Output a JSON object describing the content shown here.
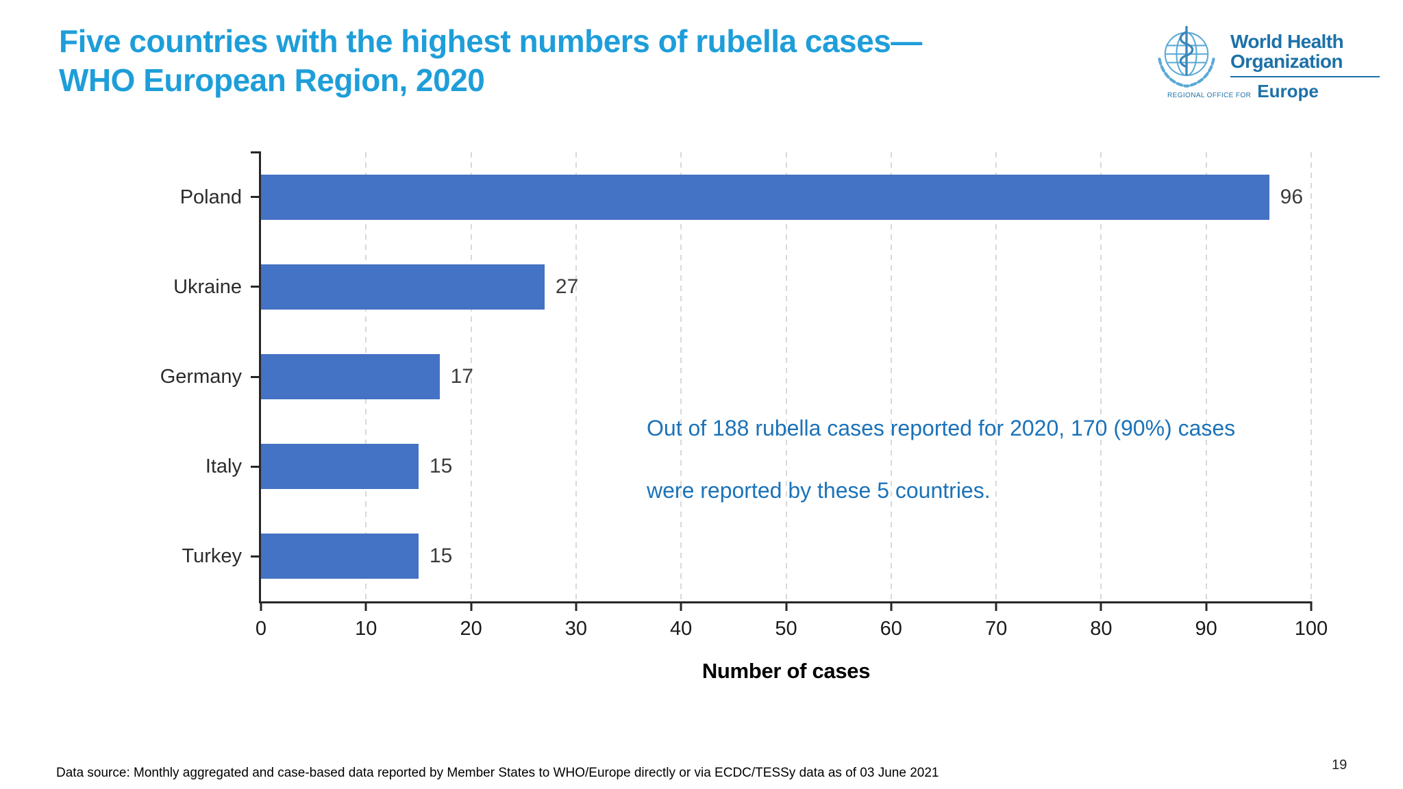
{
  "slide": {
    "title_line1": "Five countries with the highest numbers of rubella cases—",
    "title_line2": "WHO European Region, 2020",
    "annotation_line1": "Out of 188 rubella cases reported for 2020, 170 (90%) cases",
    "annotation_line2": "were reported by these 5 countries.",
    "footer": "Data source: Monthly aggregated and case-based data reported by Member States to WHO/Europe directly or via ECDC/TESSy data as of 03 June 2021",
    "page_number": "19"
  },
  "logo": {
    "org_line1": "World Health",
    "org_line2": "Organization",
    "office_label": "REGIONAL OFFICE FOR",
    "region": "Europe"
  },
  "colors": {
    "title": "#1e9ed9",
    "annotation": "#1b72b8",
    "bar": "#4472c4",
    "axis": "#262626",
    "gridline": "#d9d9d9",
    "logo_blue": "#1d71a8",
    "logo_light": "#5aa9d6"
  },
  "chart_data": {
    "type": "bar",
    "orientation": "horizontal",
    "title": "Five countries with the highest numbers of rubella cases — WHO European Region, 2020",
    "categories": [
      "Poland",
      "Ukraine",
      "Germany",
      "Italy",
      "Turkey"
    ],
    "values": [
      96,
      27,
      17,
      15,
      15
    ],
    "xlabel": "Number of cases",
    "ylabel": "",
    "xlim": [
      0,
      100
    ],
    "xticks": [
      0,
      10,
      20,
      30,
      40,
      50,
      60,
      70,
      80,
      90,
      100
    ],
    "grid": "vertical-dashed",
    "data_labels": true,
    "legend": "none"
  }
}
